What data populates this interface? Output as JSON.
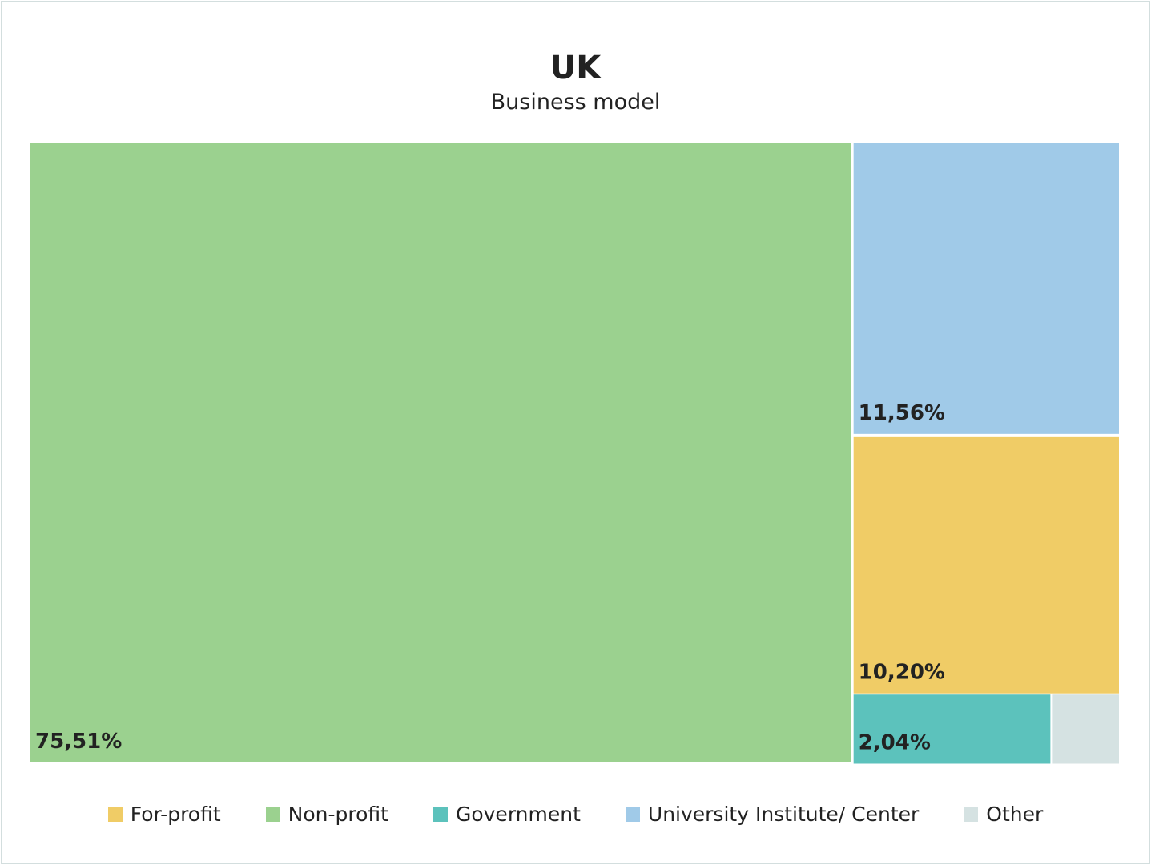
{
  "chart_data": {
    "type": "treemap",
    "title": "UK",
    "subtitle": "Business model",
    "items": [
      {
        "name": "Non-profit",
        "value": 75.51,
        "label": "75,51%",
        "color": "#9BD18F"
      },
      {
        "name": "University Institute/ Center",
        "value": 11.56,
        "label": "11,56%",
        "color": "#A0CAE8"
      },
      {
        "name": "For-profit",
        "value": 10.2,
        "label": "10,20%",
        "color": "#F0CC66"
      },
      {
        "name": "Government",
        "value": 2.04,
        "label": "2,04%",
        "color": "#5CC2BC"
      },
      {
        "name": "Other",
        "value": 0.69,
        "label": "",
        "color": "#D5E2E2"
      }
    ],
    "legend": [
      {
        "name": "For-profit",
        "color": "#F0CC66"
      },
      {
        "name": "Non-profit",
        "color": "#9BD18F"
      },
      {
        "name": "Government",
        "color": "#5CC2BC"
      },
      {
        "name": "University Institute/ Center",
        "color": "#A0CAE8"
      },
      {
        "name": "Other",
        "color": "#D5E2E2"
      }
    ],
    "legend_position": "bottom"
  }
}
